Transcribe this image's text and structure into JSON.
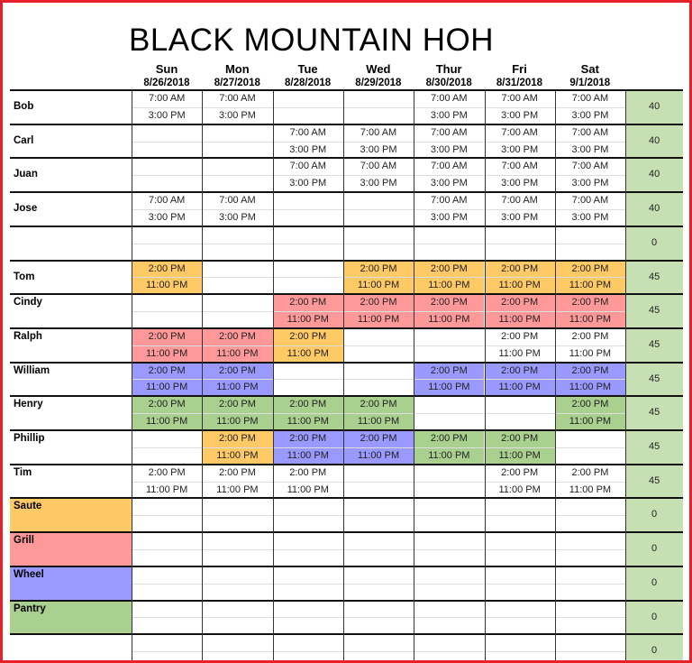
{
  "title": "BLACK MOUNTAIN HOH",
  "days": [
    {
      "name": "Sun",
      "date": "8/26/2018"
    },
    {
      "name": "Mon",
      "date": "8/27/2018"
    },
    {
      "name": "Tue",
      "date": "8/28/2018"
    },
    {
      "name": "Wed",
      "date": "8/29/2018"
    },
    {
      "name": "Thur",
      "date": "8/30/2018"
    },
    {
      "name": "Fri",
      "date": "8/31/2018"
    },
    {
      "name": "Sat",
      "date": "9/1/2018"
    }
  ],
  "colors": {
    "saute": "#ffc966",
    "grill": "#ff9999",
    "wheel": "#9999ff",
    "pantry": "#a9d08e",
    "total": "#c6e0b4",
    "white": "#ffffff"
  },
  "rows": [
    {
      "name": "Bob",
      "total": "40",
      "cells": [
        [
          "7:00 AM",
          "3:00 PM",
          "white"
        ],
        [
          "7:00 AM",
          "3:00 PM",
          "white"
        ],
        null,
        null,
        [
          "7:00 AM",
          "3:00 PM",
          "white"
        ],
        [
          "7:00 AM",
          "3:00 PM",
          "white"
        ],
        [
          "7:00 AM",
          "3:00 PM",
          "white"
        ]
      ]
    },
    {
      "name": "Carl",
      "total": "40",
      "cells": [
        null,
        null,
        [
          "7:00 AM",
          "3:00 PM",
          "white"
        ],
        [
          "7:00 AM",
          "3:00 PM",
          "white"
        ],
        [
          "7:00 AM",
          "3:00 PM",
          "white"
        ],
        [
          "7:00 AM",
          "3:00 PM",
          "white"
        ],
        [
          "7:00 AM",
          "3:00 PM",
          "white"
        ]
      ]
    },
    {
      "name": "Juan",
      "total": "40",
      "cells": [
        null,
        null,
        [
          "7:00 AM",
          "3:00 PM",
          "white"
        ],
        [
          "7:00 AM",
          "3:00 PM",
          "white"
        ],
        [
          "7:00 AM",
          "3:00 PM",
          "white"
        ],
        [
          "7:00 AM",
          "3:00 PM",
          "white"
        ],
        [
          "7:00 AM",
          "3:00 PM",
          "white"
        ]
      ]
    },
    {
      "name": "Jose",
      "total": "40",
      "cells": [
        [
          "7:00 AM",
          "3:00 PM",
          "white"
        ],
        [
          "7:00 AM",
          "3:00 PM",
          "white"
        ],
        null,
        null,
        [
          "7:00 AM",
          "3:00 PM",
          "white"
        ],
        [
          "7:00 AM",
          "3:00 PM",
          "white"
        ],
        [
          "7:00 AM",
          "3:00 PM",
          "white"
        ]
      ]
    },
    {
      "name": "",
      "total": "0",
      "cells": [
        null,
        null,
        null,
        null,
        null,
        null,
        null
      ]
    },
    {
      "name": "Tom",
      "total": "45",
      "cells": [
        [
          "2:00 PM",
          "11:00 PM",
          "saute"
        ],
        null,
        null,
        [
          "2:00 PM",
          "11:00 PM",
          "saute"
        ],
        [
          "2:00 PM",
          "11:00 PM",
          "saute"
        ],
        [
          "2:00 PM",
          "11:00 PM",
          "saute"
        ],
        [
          "2:00 PM",
          "11:00 PM",
          "saute"
        ]
      ]
    },
    {
      "name": "Cindy",
      "total": "45",
      "cells": [
        null,
        null,
        [
          "2:00 PM",
          "11:00 PM",
          "grill"
        ],
        [
          "2:00 PM",
          "11:00 PM",
          "grill"
        ],
        [
          "2:00 PM",
          "11:00 PM",
          "grill"
        ],
        [
          "2:00 PM",
          "11:00 PM",
          "grill"
        ],
        [
          "2:00 PM",
          "11:00 PM",
          "grill"
        ]
      ]
    },
    {
      "name": "Ralph",
      "total": "45",
      "cells": [
        [
          "2:00 PM",
          "11:00 PM",
          "grill"
        ],
        [
          "2:00 PM",
          "11:00 PM",
          "grill"
        ],
        [
          "2:00 PM",
          "11:00 PM",
          "saute"
        ],
        null,
        null,
        [
          "2:00 PM",
          "11:00 PM",
          "white"
        ],
        [
          "2:00 PM",
          "11:00 PM",
          "white"
        ]
      ]
    },
    {
      "name": "William",
      "total": "45",
      "cells": [
        [
          "2:00 PM",
          "11:00 PM",
          "wheel"
        ],
        [
          "2:00 PM",
          "11:00 PM",
          "wheel"
        ],
        null,
        null,
        [
          "2:00 PM",
          "11:00 PM",
          "wheel"
        ],
        [
          "2:00 PM",
          "11:00 PM",
          "wheel"
        ],
        [
          "2:00 PM",
          "11:00 PM",
          "wheel"
        ]
      ]
    },
    {
      "name": "Henry",
      "total": "45",
      "cells": [
        [
          "2:00 PM",
          "11:00 PM",
          "pantry"
        ],
        [
          "2:00 PM",
          "11:00 PM",
          "pantry"
        ],
        [
          "2:00 PM",
          "11:00 PM",
          "pantry"
        ],
        [
          "2:00 PM",
          "11:00 PM",
          "pantry"
        ],
        null,
        null,
        [
          "2:00 PM",
          "11:00 PM",
          "pantry"
        ]
      ]
    },
    {
      "name": "Phillip",
      "total": "45",
      "cells": [
        null,
        [
          "2:00 PM",
          "11:00 PM",
          "saute"
        ],
        [
          "2:00 PM",
          "11:00 PM",
          "wheel"
        ],
        [
          "2:00 PM",
          "11:00 PM",
          "wheel"
        ],
        [
          "2:00 PM",
          "11:00 PM",
          "pantry"
        ],
        [
          "2:00 PM",
          "11:00 PM",
          "pantry"
        ],
        null
      ]
    },
    {
      "name": "Tim",
      "total": "45",
      "cells": [
        [
          "2:00 PM",
          "11:00 PM",
          "white"
        ],
        [
          "2:00 PM",
          "11:00 PM",
          "white"
        ],
        [
          "2:00 PM",
          "11:00 PM",
          "white"
        ],
        null,
        null,
        [
          "2:00 PM",
          "11:00 PM",
          "white"
        ],
        [
          "2:00 PM",
          "11:00 PM",
          "white"
        ]
      ]
    },
    {
      "name": "Saute",
      "label_color": "saute",
      "total": "0",
      "cells": [
        null,
        null,
        null,
        null,
        null,
        null,
        null
      ]
    },
    {
      "name": "Grill",
      "label_color": "grill",
      "total": "0",
      "cells": [
        null,
        null,
        null,
        null,
        null,
        null,
        null
      ]
    },
    {
      "name": "Wheel",
      "label_color": "wheel",
      "total": "0",
      "cells": [
        null,
        null,
        null,
        null,
        null,
        null,
        null
      ]
    },
    {
      "name": "Pantry",
      "label_color": "pantry",
      "total": "0",
      "cells": [
        null,
        null,
        null,
        null,
        null,
        null,
        null
      ]
    },
    {
      "name": "",
      "total": "0",
      "cells": [
        null,
        null,
        null,
        null,
        null,
        null,
        null
      ]
    }
  ]
}
